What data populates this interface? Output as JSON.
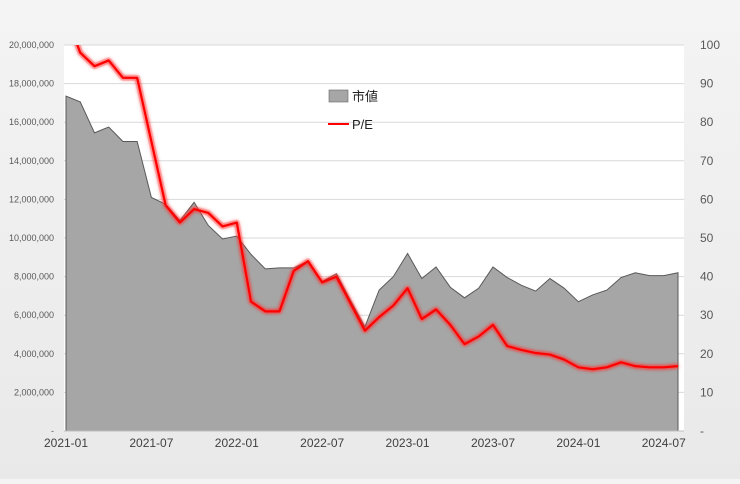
{
  "chart_data": {
    "type": "area+line",
    "dual_axis": true,
    "y_left": {
      "min": 0,
      "max": 20000000,
      "step": 2000000,
      "tick_labels": [
        "-",
        "2,000,000",
        "4,000,000",
        "6,000,000",
        "8,000,000",
        "10,000,000",
        "12,000,000",
        "14,000,000",
        "16,000,000",
        "18,000,000",
        "20,000,000"
      ]
    },
    "y_right": {
      "min": 0,
      "max": 100,
      "step": 10,
      "tick_labels": [
        "-",
        "10",
        "20",
        "30",
        "40",
        "50",
        "60",
        "70",
        "80",
        "90",
        "100"
      ]
    },
    "x_tick_labels": [
      "2021-01",
      "2021-07",
      "2022-01",
      "2022-07",
      "2023-01",
      "2023-07",
      "2024-01",
      "2024-07"
    ],
    "x": [
      "2021-01",
      "2021-02",
      "2021-03",
      "2021-04",
      "2021-05",
      "2021-06",
      "2021-07",
      "2021-08",
      "2021-09",
      "2021-10",
      "2021-11",
      "2021-12",
      "2022-01",
      "2022-02",
      "2022-03",
      "2022-04",
      "2022-05",
      "2022-06",
      "2022-07",
      "2022-08",
      "2022-09",
      "2022-10",
      "2022-11",
      "2022-12",
      "2023-01",
      "2023-02",
      "2023-03",
      "2023-04",
      "2023-05",
      "2023-06",
      "2023-07",
      "2023-08",
      "2023-09",
      "2023-10",
      "2023-11",
      "2023-12",
      "2024-01",
      "2024-02",
      "2024-03",
      "2024-04",
      "2024-05",
      "2024-06",
      "2024-07",
      "2024-08"
    ],
    "series": [
      {
        "name": "市値",
        "kind": "area",
        "axis": "left",
        "color": "#a6a6a6",
        "values": [
          17350000,
          17050000,
          15450000,
          15750000,
          15000000,
          15000000,
          12100000,
          11750000,
          10900000,
          11850000,
          10650000,
          9950000,
          10100000,
          9150000,
          8400000,
          8450000,
          8450000,
          8800000,
          7750000,
          8150000,
          6750000,
          5400000,
          7300000,
          8000000,
          9200000,
          7900000,
          8500000,
          7450000,
          6900000,
          7400000,
          8500000,
          7950000,
          7550000,
          7250000,
          7900000,
          7400000,
          6700000,
          7050000,
          7300000,
          7950000,
          8200000,
          8050000,
          8050000,
          8200000
        ]
      },
      {
        "name": "P/E",
        "kind": "line",
        "axis": "right",
        "color": "#ff0000",
        "values": [
          108,
          98,
          94.5,
          96,
          91.5,
          91.5,
          75,
          58.5,
          54,
          57.5,
          56.5,
          53,
          54,
          33.5,
          31,
          31,
          41.5,
          44,
          38.5,
          40,
          33,
          26,
          29.5,
          32.5,
          37,
          29,
          31.5,
          27.5,
          22.5,
          24.5,
          27.5,
          22,
          21,
          20.2,
          19.8,
          18.5,
          16.5,
          16,
          16.5,
          17.8,
          16.8,
          16.5,
          16.5,
          16.8
        ]
      }
    ],
    "legend": {
      "position": "top-center-inside",
      "entries": [
        "市値",
        "P/E"
      ]
    },
    "grid": true
  }
}
